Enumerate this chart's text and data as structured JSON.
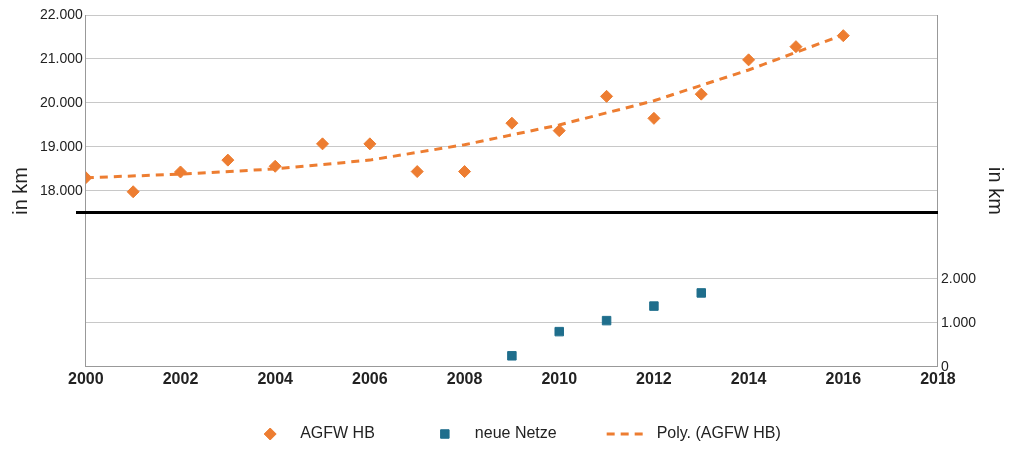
{
  "chart_data": {
    "type": "scatter",
    "ylabel": "in km",
    "y2label": "in km",
    "xlim": [
      2000,
      2018
    ],
    "xticks": [
      2000,
      2002,
      2004,
      2006,
      2008,
      2010,
      2012,
      2014,
      2016,
      2018
    ],
    "ylim": [
      14000,
      22000
    ],
    "yticks": [
      {
        "value": 18000,
        "label": "18.000"
      },
      {
        "value": 19000,
        "label": "19.000"
      },
      {
        "value": 20000,
        "label": "20.000"
      },
      {
        "value": 21000,
        "label": "21.000"
      },
      {
        "value": 22000,
        "label": "22.000"
      }
    ],
    "y2lim": [
      0,
      8000
    ],
    "y2ticks": [
      0,
      {
        "value": 1000,
        "label": "1.000"
      },
      {
        "value": 2000,
        "label": "2.000"
      }
    ],
    "grid": "y",
    "legend": "bottom",
    "series": [
      {
        "name": "AGFW HB",
        "type": "scatter",
        "marker": "diamond",
        "color": "#ed7d31",
        "x": [
          2000,
          2001,
          2002,
          2003,
          2004,
          2005,
          2006,
          2007,
          2008,
          2009,
          2010,
          2011,
          2012,
          2013,
          2014,
          2015,
          2016
        ],
        "values": [
          18300,
          17980,
          18430,
          18700,
          18560,
          19070,
          19070,
          18440,
          18440,
          19540,
          19370,
          20150,
          19650,
          20200,
          20980,
          21280,
          21530
        ]
      },
      {
        "name": "neue Netze",
        "type": "scatter",
        "marker": "square",
        "axis": "y2",
        "color": "#1f6e8c",
        "x": [
          2009,
          2010,
          2011,
          2012,
          2013
        ],
        "values": [
          250,
          800,
          1050,
          1380,
          1680
        ]
      },
      {
        "name": "Poly. (AGFW HB)",
        "type": "line",
        "marker": "none",
        "line_style": "dashed",
        "color": "#ed7d31",
        "x": [
          2000,
          2002,
          2004,
          2006,
          2008,
          2010,
          2012,
          2014,
          2016
        ],
        "values": [
          18300,
          18380,
          18500,
          18700,
          19050,
          19500,
          20050,
          20750,
          21550
        ]
      }
    ]
  }
}
